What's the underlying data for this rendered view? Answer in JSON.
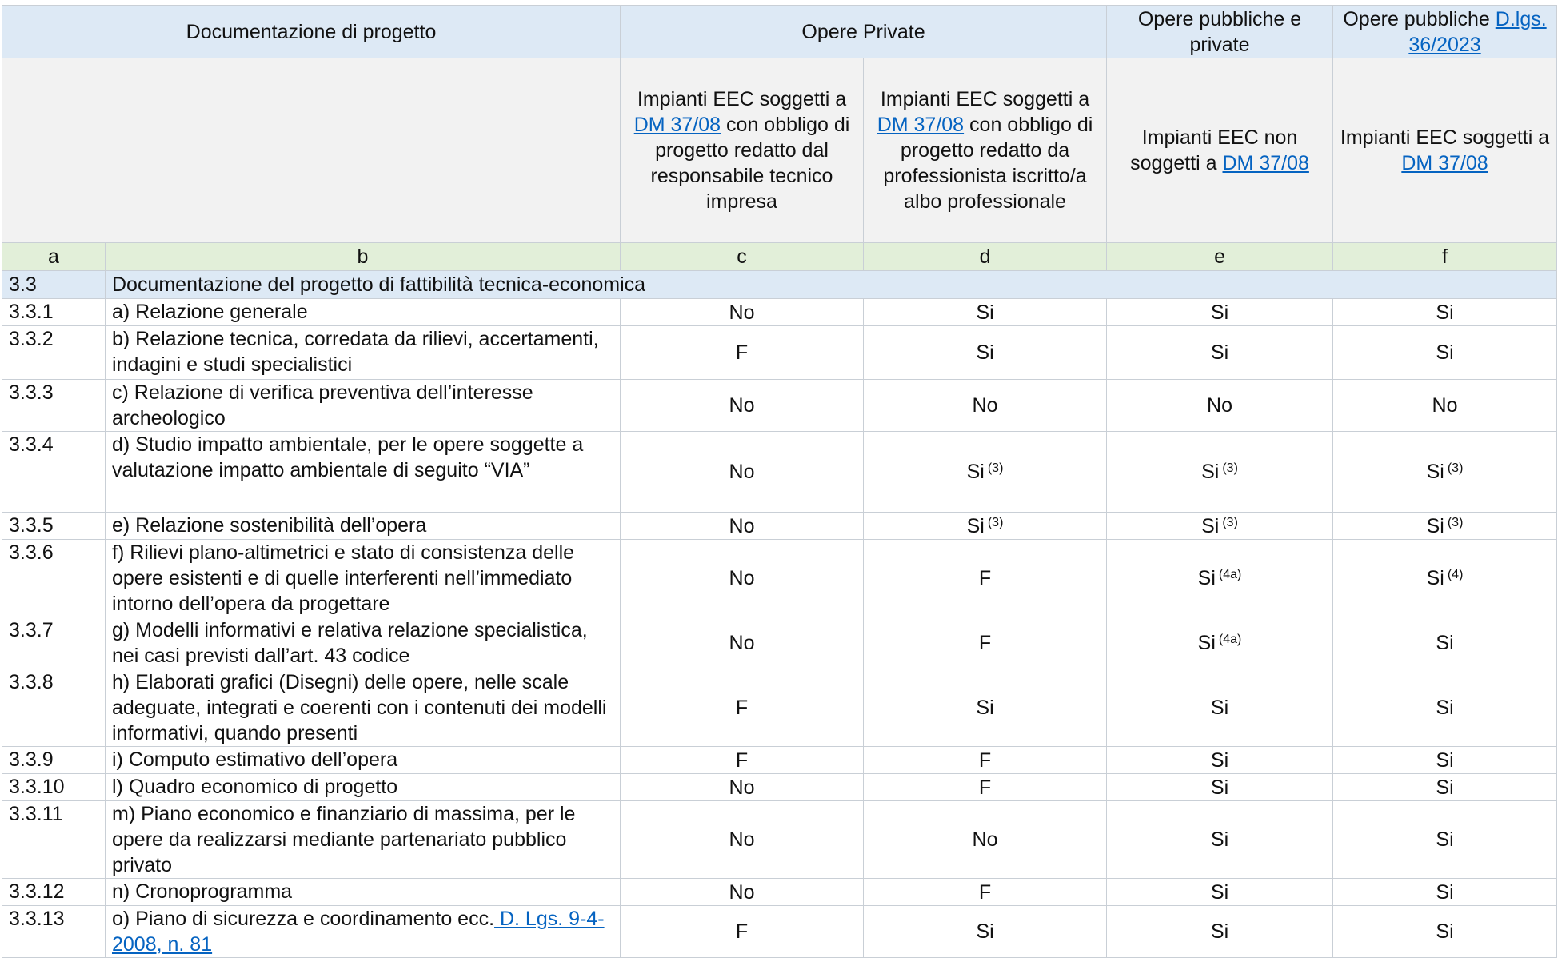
{
  "header": {
    "groups": [
      [
        "Documentazione di progetto"
      ],
      [
        "Opere Private"
      ],
      [
        "Opere pubbliche e private"
      ],
      [
        "Opere pubbliche ",
        {
          "link": "D.lgs. 36/2023"
        }
      ]
    ],
    "subheaders": [
      [
        "Impianti EEC soggetti a ",
        {
          "link": "DM 37/08"
        },
        " con obbligo di progetto redatto dal responsabile tecnico impresa"
      ],
      [
        "Impianti EEC soggetti a ",
        {
          "link": "DM 37/08"
        },
        " con obbligo di progetto redatto da professionista iscritto/a albo professionale"
      ],
      [
        "Impianti EEC non soggetti a ",
        {
          "link": "DM 37/08"
        }
      ],
      [
        "Impianti EEC soggetti a ",
        {
          "link": "DM 37/08"
        }
      ]
    ],
    "letters": [
      "a",
      "b",
      "c",
      "d",
      "e",
      "f"
    ]
  },
  "section": {
    "code": "3.3",
    "title": "Documentazione del progetto di fattibilità tecnica-economica"
  },
  "rows": [
    {
      "code": "3.3.1",
      "description": [
        "a) Relazione generale"
      ],
      "values": [
        "No",
        "Si",
        "Si",
        "Si"
      ]
    },
    {
      "code": "3.3.2",
      "description": [
        "b) Relazione tecnica, corredata da rilievi, accertamenti, indagini e studi specialistici"
      ],
      "values": [
        "F",
        "Si",
        "Si",
        "Si"
      ]
    },
    {
      "code": "3.3.3",
      "description": [
        "c) Relazione di verifica preventiva dell’interesse archeologico"
      ],
      "values": [
        "No",
        "No",
        "No",
        "No"
      ]
    },
    {
      "code": "3.3.4",
      "description": [
        "d) Studio impatto ambientale, per le opere soggette a valutazione impatto ambientale di seguito “VIA”"
      ],
      "values": [
        "No",
        {
          "text": "Si",
          "note": "(3)"
        },
        {
          "text": "Si",
          "note": "(3)"
        },
        {
          "text": "Si",
          "note": "(3)"
        }
      ]
    },
    {
      "code": "3.3.5",
      "description": [
        "e) Relazione sostenibilità dell’opera"
      ],
      "values": [
        "No",
        {
          "text": "Si",
          "note": "(3)"
        },
        {
          "text": "Si",
          "note": "(3)"
        },
        {
          "text": "Si",
          "note": "(3)"
        }
      ]
    },
    {
      "code": "3.3.6",
      "description": [
        "f) Rilievi plano-altimetrici e stato di consistenza delle opere esistenti e di quelle interferenti nell’immediato intorno dell’opera da progettare"
      ],
      "values": [
        "No",
        "F",
        {
          "text": "Si",
          "note": "(4a)"
        },
        {
          "text": "Si",
          "note": "(4)"
        }
      ]
    },
    {
      "code": "3.3.7",
      "description": [
        "g) Modelli informativi e relativa relazione specialistica, nei casi previsti dall’art. 43 codice"
      ],
      "values": [
        "No",
        "F",
        {
          "text": "Si",
          "note": "(4a)"
        },
        "Si"
      ]
    },
    {
      "code": "3.3.8",
      "description": [
        "h) Elaborati grafici (Disegni) delle opere, nelle scale adeguate, integrati e coerenti con i contenuti dei modelli informativi, quando presenti"
      ],
      "values": [
        "F",
        "Si",
        "Si",
        "Si"
      ]
    },
    {
      "code": "3.3.9",
      "description": [
        "i) Computo estimativo dell’opera"
      ],
      "values": [
        "F",
        "F",
        "Si",
        "Si"
      ]
    },
    {
      "code": "3.3.10",
      "description": [
        "l) Quadro economico di progetto"
      ],
      "values": [
        "No",
        "F",
        "Si",
        "Si"
      ]
    },
    {
      "code": "3.3.11",
      "description": [
        "m) Piano economico e finanziario di massima, per le opere da realizzarsi mediante partenariato pubblico privato"
      ],
      "values": [
        "No",
        "No",
        "Si",
        "Si"
      ]
    },
    {
      "code": "3.3.12",
      "description": [
        "n) Cronoprogramma"
      ],
      "values": [
        "No",
        "F",
        "Si",
        "Si"
      ]
    },
    {
      "code": "3.3.13",
      "description": [
        "o) Piano di sicurezza e coordinamento ecc.",
        {
          "link": " D. Lgs. 9-4-2008, n. 81"
        }
      ],
      "values": [
        "F",
        "Si",
        "Si",
        "Si"
      ]
    }
  ]
}
